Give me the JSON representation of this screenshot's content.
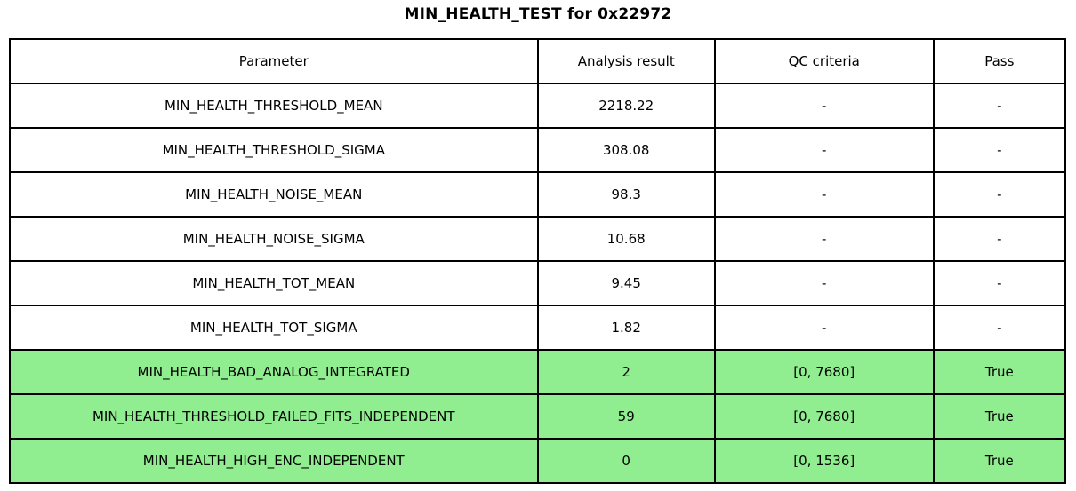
{
  "title": "MIN_HEALTH_TEST for 0x22972",
  "colors": {
    "highlight_green": "#90ee90",
    "border": "#000000",
    "background": "#ffffff",
    "text": "#000000"
  },
  "chart_data": {
    "type": "table",
    "title": "MIN_HEALTH_TEST for 0x22972",
    "columns": [
      "Parameter",
      "Analysis result",
      "QC criteria",
      "Pass"
    ],
    "rows": [
      [
        "MIN_HEALTH_THRESHOLD_MEAN",
        "2218.22",
        "-",
        "-"
      ],
      [
        "MIN_HEALTH_THRESHOLD_SIGMA",
        "308.08",
        "-",
        "-"
      ],
      [
        "MIN_HEALTH_NOISE_MEAN",
        "98.3",
        "-",
        "-"
      ],
      [
        "MIN_HEALTH_NOISE_SIGMA",
        "10.68",
        "-",
        "-"
      ],
      [
        "MIN_HEALTH_TOT_MEAN",
        "9.45",
        "-",
        "-"
      ],
      [
        "MIN_HEALTH_TOT_SIGMA",
        "1.82",
        "-",
        "-"
      ],
      [
        "MIN_HEALTH_BAD_ANALOG_INTEGRATED",
        "2",
        "[0, 7680]",
        "True"
      ],
      [
        "MIN_HEALTH_THRESHOLD_FAILED_FITS_INDEPENDENT",
        "59",
        "[0, 7680]",
        "True"
      ],
      [
        "MIN_HEALTH_HIGH_ENC_INDEPENDENT",
        "0",
        "[0, 1536]",
        "True"
      ]
    ],
    "highlighted_rows": [
      6,
      7,
      8
    ],
    "highlight_color": "#90ee90",
    "legend_position": "none",
    "grid": "full-cell-borders"
  }
}
